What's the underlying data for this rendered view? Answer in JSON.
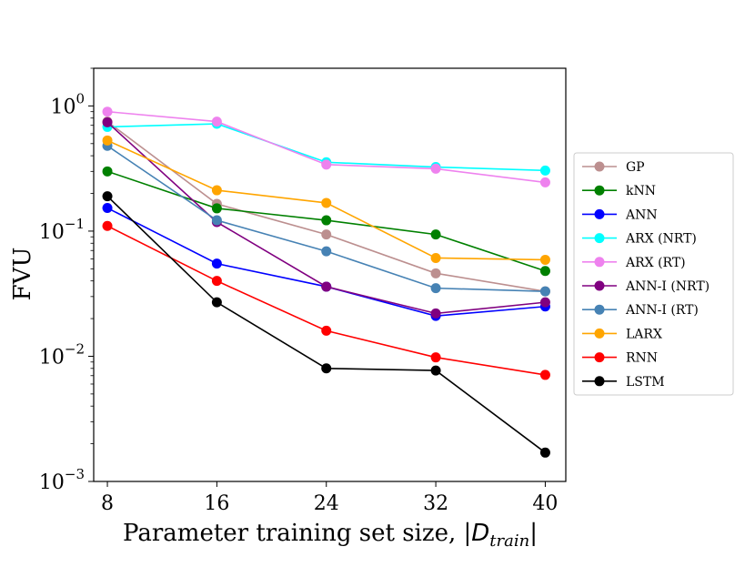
{
  "chart_data": {
    "type": "line",
    "yscale": "log",
    "x": [
      8,
      16,
      24,
      32,
      40
    ],
    "xticks": [
      "8",
      "16",
      "24",
      "32",
      "40"
    ],
    "ylim": [
      0.001,
      2
    ],
    "yticks": [
      {
        "value": 1,
        "base": "10",
        "exp": "0"
      },
      {
        "value": 0.1,
        "base": "10",
        "exp": "−1"
      },
      {
        "value": 0.01,
        "base": "10",
        "exp": "−2"
      },
      {
        "value": 0.001,
        "base": "10",
        "exp": "−3"
      }
    ],
    "xlabel_prefix": "Parameter training set size, |",
    "xlabel_symbol": "D",
    "xlabel_sub": "train",
    "xlabel_suffix": "|",
    "ylabel": "FVU",
    "legend_position": "right",
    "series": [
      {
        "name": "GP",
        "color": "#bc8f8f",
        "values": [
          0.75,
          0.165,
          0.094,
          0.046,
          0.033
        ]
      },
      {
        "name": "kNN",
        "color": "#008000",
        "values": [
          0.3,
          0.152,
          0.122,
          0.094,
          0.048
        ]
      },
      {
        "name": "ANN",
        "color": "#0000ff",
        "values": [
          0.153,
          0.055,
          0.036,
          0.021,
          0.025
        ]
      },
      {
        "name": "ARX (NRT)",
        "color": "#00ffff",
        "values": [
          0.68,
          0.72,
          0.355,
          0.325,
          0.305
        ]
      },
      {
        "name": "ARX (RT)",
        "color": "#ee82ee",
        "values": [
          0.9,
          0.75,
          0.34,
          0.315,
          0.245
        ]
      },
      {
        "name": "ANN-I (NRT)",
        "color": "#800080",
        "values": [
          0.74,
          0.118,
          0.036,
          0.022,
          0.027
        ]
      },
      {
        "name": "ANN-I (RT)",
        "color": "#4682b4",
        "values": [
          0.48,
          0.122,
          0.069,
          0.035,
          0.033
        ]
      },
      {
        "name": "LARX",
        "color": "#ffa500",
        "values": [
          0.53,
          0.212,
          0.168,
          0.061,
          0.059
        ]
      },
      {
        "name": "RNN",
        "color": "#ff0000",
        "values": [
          0.11,
          0.04,
          0.016,
          0.0098,
          0.0071
        ]
      },
      {
        "name": "LSTM",
        "color": "#000000",
        "values": [
          0.19,
          0.027,
          0.008,
          0.0077,
          0.0017
        ]
      }
    ]
  }
}
